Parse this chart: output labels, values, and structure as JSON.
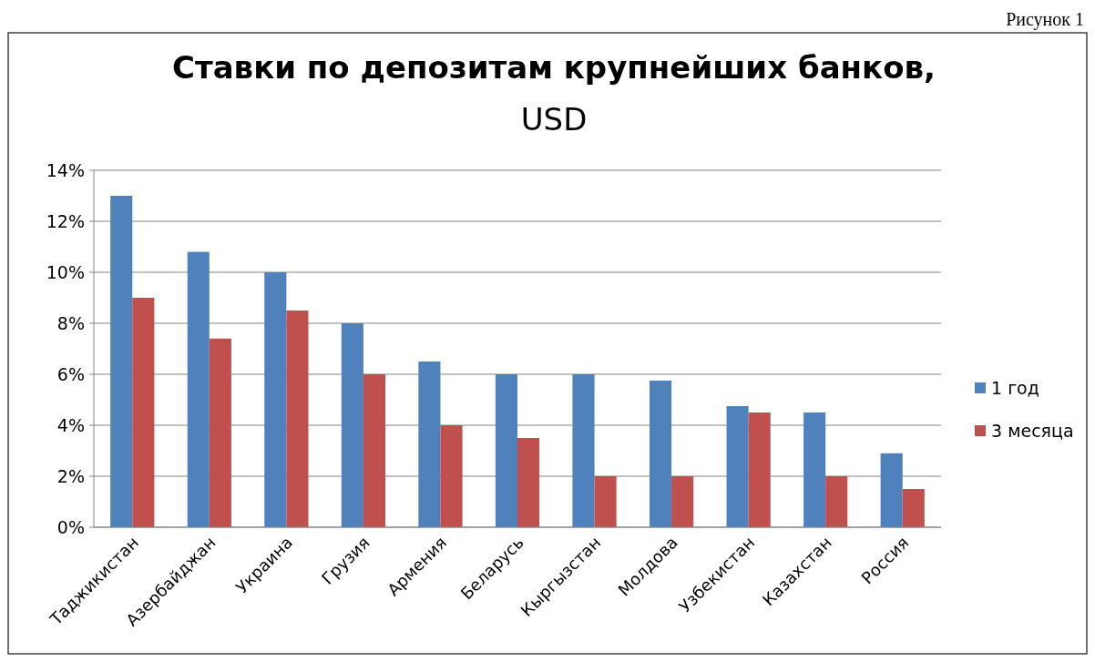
{
  "chart_data": {
    "type": "bar",
    "title": "Ставки по депозитам крупнейших банков,",
    "subtitle": "USD",
    "annotations": [
      "Рисунок 1"
    ],
    "categories": [
      "Таджикистан",
      "Азербайджан",
      "Украина",
      "Грузия",
      "Армения",
      "Беларусь",
      "Кыргызстан",
      "Молдова",
      "Узбекистан",
      "Казахстан",
      "Россия"
    ],
    "series": [
      {
        "name": "1 год",
        "color": "#4f81bd",
        "values": [
          13,
          10.8,
          10,
          8,
          6.5,
          6,
          6,
          5.75,
          4.75,
          4.5,
          2.9
        ]
      },
      {
        "name": "3 месяца",
        "color": "#c0504d",
        "values": [
          9,
          7.4,
          8.5,
          6,
          4,
          3.5,
          2,
          2,
          4.5,
          2,
          1.5
        ]
      }
    ],
    "ylim": [
      0,
      14
    ],
    "yticks": [
      {
        "value": 0,
        "label": "0%"
      },
      {
        "value": 2,
        "label": "2%"
      },
      {
        "value": 4,
        "label": "4%"
      },
      {
        "value": 6,
        "label": "6%"
      },
      {
        "value": 8,
        "label": "8%"
      },
      {
        "value": 10,
        "label": "10%"
      },
      {
        "value": 12,
        "label": "12%"
      },
      {
        "value": 14,
        "label": "14%"
      }
    ],
    "grid": "y",
    "legend": "right"
  }
}
